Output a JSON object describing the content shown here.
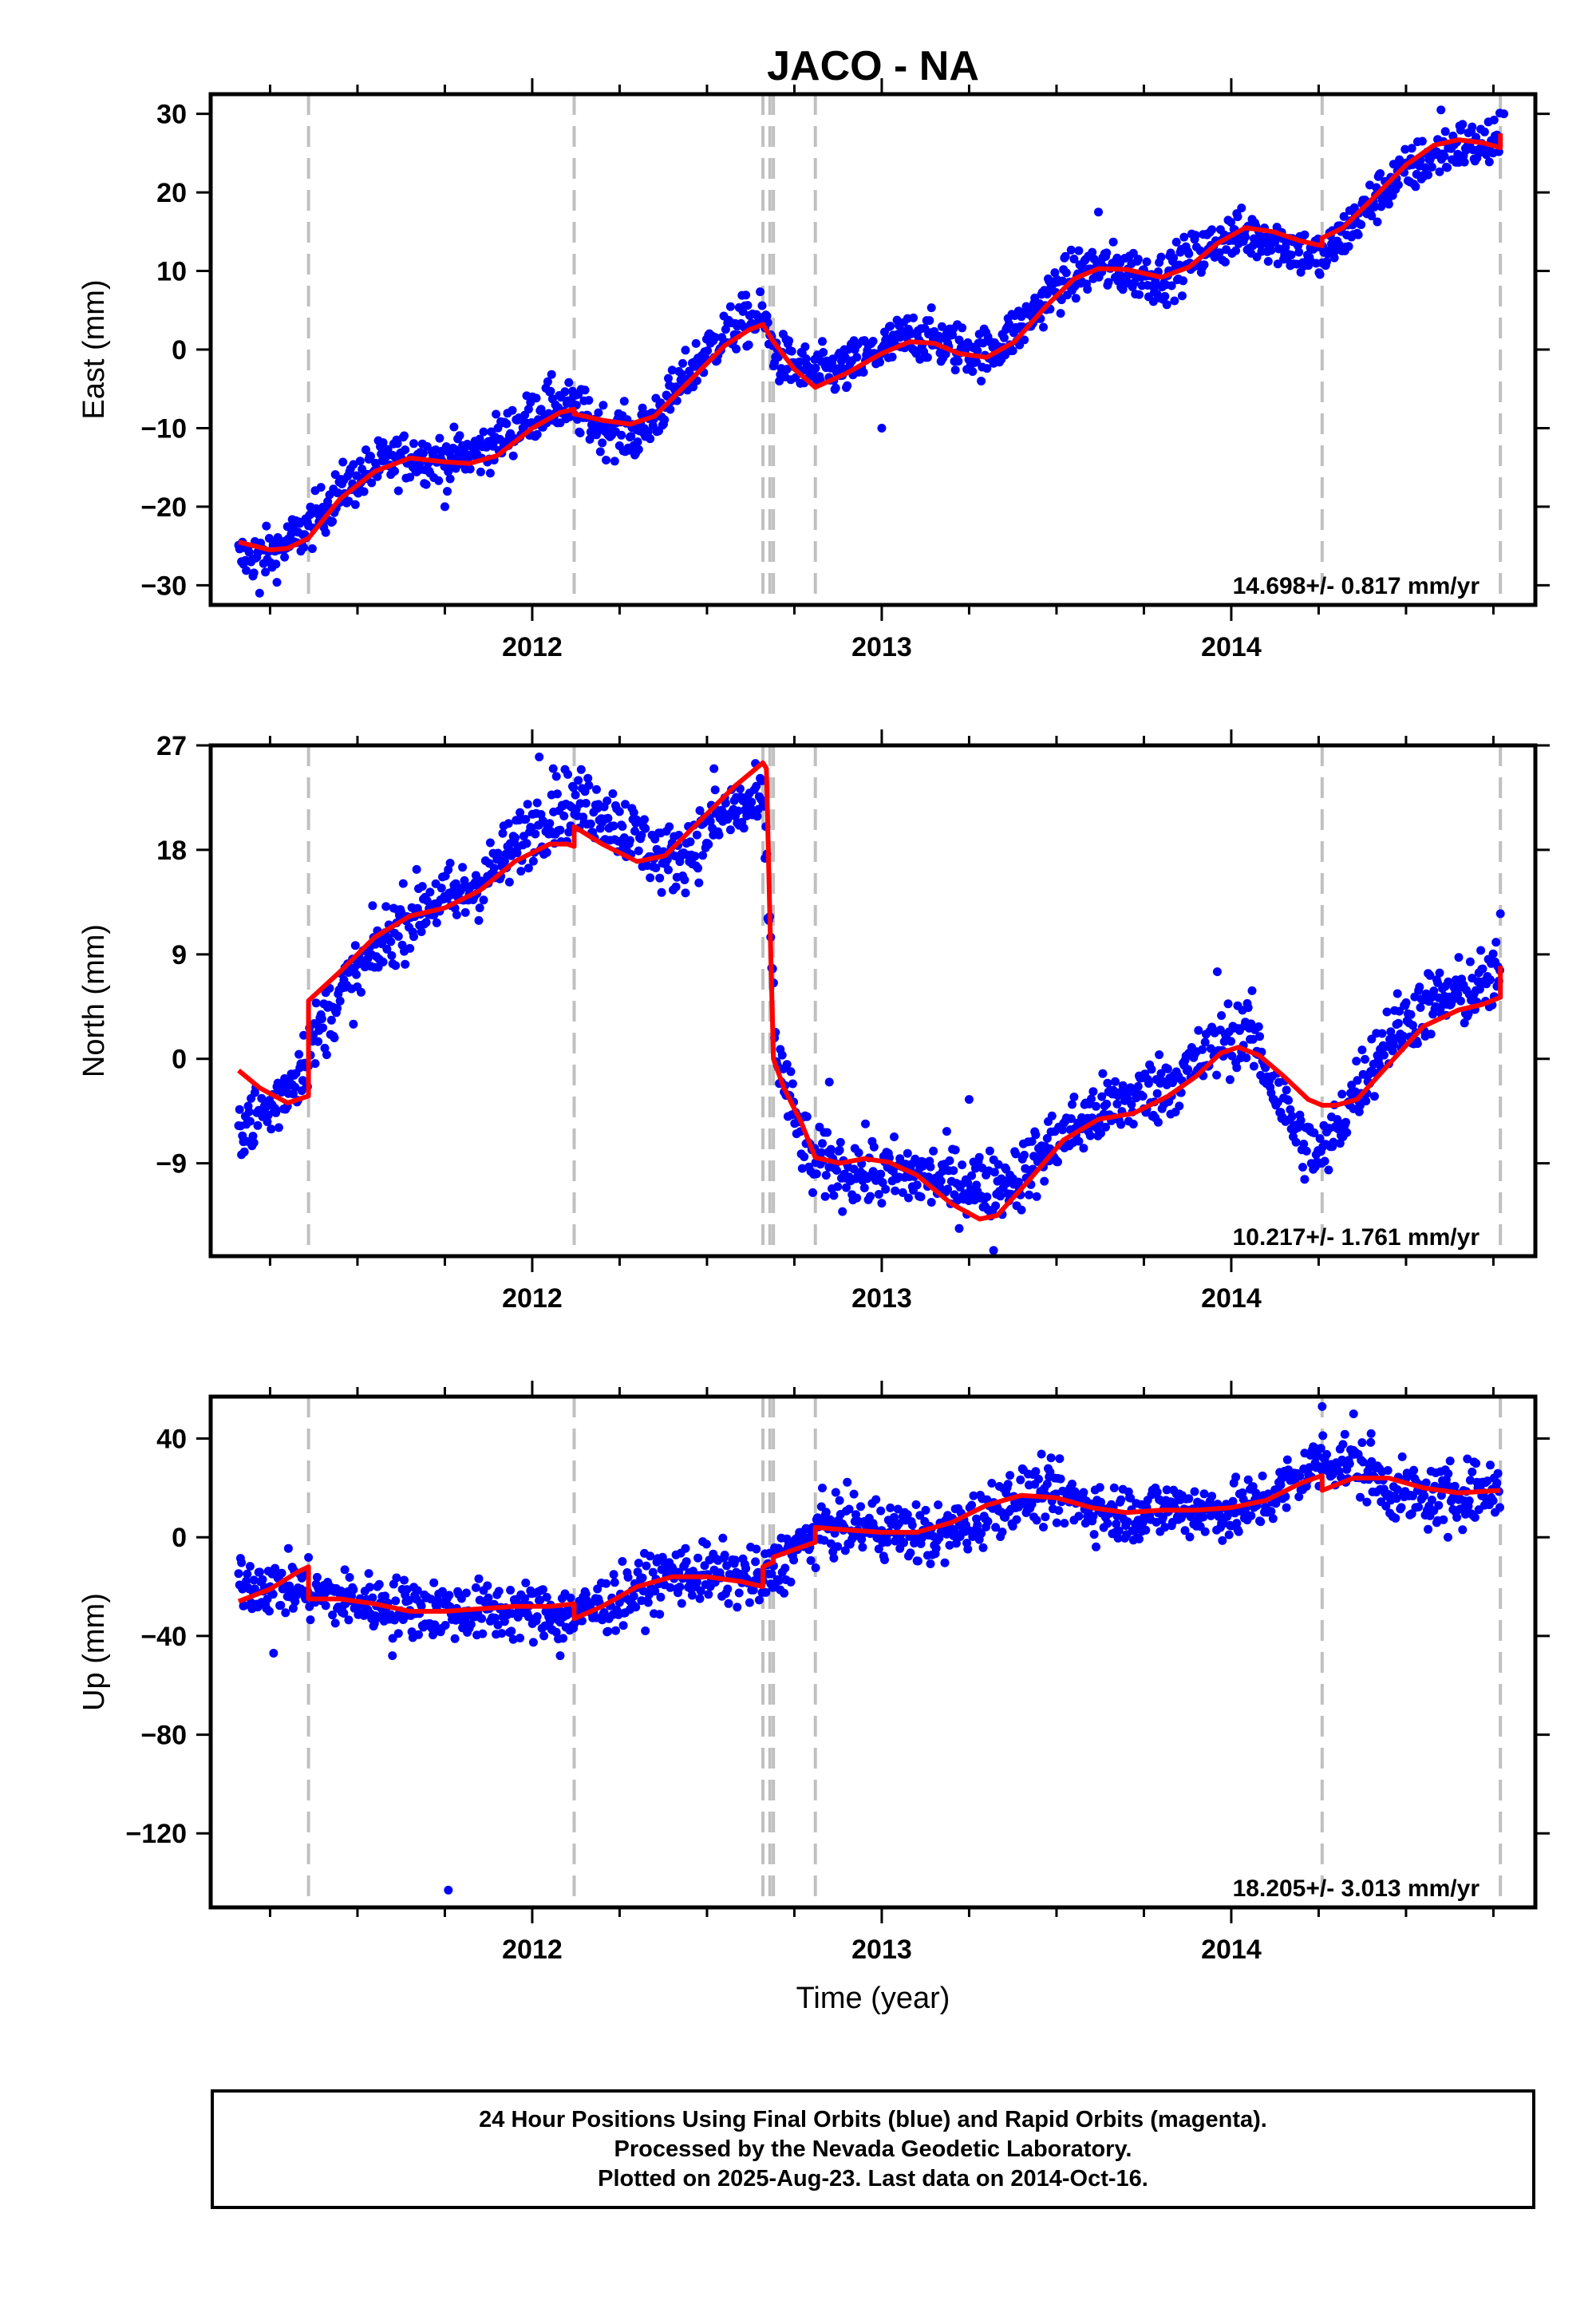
{
  "title": "JACO - NA",
  "xlabel": "Time (year)",
  "caption": [
    "24 Hour Positions Using Final Orbits (blue) and Rapid Orbits (magenta).",
    "Processed by the Nevada Geodetic Laboratory.",
    "Plotted on 2025-Aug-23. Last data on 2014-Oct-16."
  ],
  "colors": {
    "data": "#0000ff",
    "model": "#ff0000",
    "steps": "#c0c0c0",
    "frame": "#000000"
  },
  "chart_data": [
    {
      "type": "scatter",
      "panel": "East",
      "ylabel": "East (mm)",
      "xlim": [
        2011.08,
        2014.87
      ],
      "ylim": [
        -32.5,
        32.5
      ],
      "yticks": [
        -30,
        -20,
        -10,
        0,
        10,
        20,
        30
      ],
      "ytick_labels": [
        "−30",
        "−20",
        "−10",
        "0",
        "10",
        "20",
        "30"
      ],
      "xticks": [
        2012,
        2013,
        2014
      ],
      "xtick_labels": [
        "2012",
        "2013",
        "2014"
      ],
      "rate_text": "14.698+/- 0.817 mm/yr",
      "step_epochs": [
        2011.36,
        2012.12,
        2012.66,
        2012.68,
        2012.69,
        2012.81,
        2014.26,
        2014.77
      ],
      "data_trend": [
        [
          2011.16,
          -26.5
        ],
        [
          2011.25,
          -26
        ],
        [
          2011.34,
          -23.5
        ],
        [
          2011.45,
          -18
        ],
        [
          2011.55,
          -15
        ],
        [
          2011.65,
          -13.5
        ],
        [
          2011.75,
          -14
        ],
        [
          2011.85,
          -13
        ],
        [
          2011.95,
          -10
        ],
        [
          2012.05,
          -7
        ],
        [
          2012.12,
          -7.5
        ],
        [
          2012.2,
          -10
        ],
        [
          2012.3,
          -11
        ],
        [
          2012.4,
          -6
        ],
        [
          2012.5,
          0
        ],
        [
          2012.6,
          3.5
        ],
        [
          2012.66,
          4
        ],
        [
          2012.7,
          -1
        ],
        [
          2012.8,
          -3
        ],
        [
          2012.9,
          -2.5
        ],
        [
          2013.0,
          0
        ],
        [
          2013.1,
          2
        ],
        [
          2013.2,
          0.5
        ],
        [
          2013.3,
          -0.5
        ],
        [
          2013.4,
          3
        ],
        [
          2013.5,
          8
        ],
        [
          2013.6,
          10.5
        ],
        [
          2013.7,
          10
        ],
        [
          2013.8,
          9
        ],
        [
          2013.9,
          12
        ],
        [
          2014.0,
          14.5
        ],
        [
          2014.1,
          14.5
        ],
        [
          2014.2,
          12.5
        ],
        [
          2014.26,
          11.5
        ],
        [
          2014.35,
          16
        ],
        [
          2014.45,
          21
        ],
        [
          2014.55,
          24
        ],
        [
          2014.65,
          26
        ],
        [
          2014.77,
          26
        ]
      ],
      "data_spread": 1.6,
      "outliers": [
        [
          2011.22,
          -31
        ],
        [
          2011.75,
          -20
        ],
        [
          2013.0,
          -10
        ],
        [
          2013.62,
          17.5
        ],
        [
          2014.6,
          30.5
        ],
        [
          2014.78,
          30
        ]
      ],
      "model": [
        [
          2011.16,
          -24.5
        ],
        [
          2011.25,
          -25.5
        ],
        [
          2011.3,
          -25.3
        ],
        [
          2011.36,
          -24
        ],
        [
          2011.45,
          -19
        ],
        [
          2011.55,
          -15.5
        ],
        [
          2011.65,
          -13.8
        ],
        [
          2011.75,
          -14.3
        ],
        [
          2011.82,
          -14.5
        ],
        [
          2011.9,
          -13.5
        ],
        [
          2012.0,
          -10
        ],
        [
          2012.08,
          -8
        ],
        [
          2012.12,
          -7.6
        ],
        [
          2012.12,
          -8.2
        ],
        [
          2012.2,
          -9
        ],
        [
          2012.28,
          -9.5
        ],
        [
          2012.35,
          -8.5
        ],
        [
          2012.45,
          -4
        ],
        [
          2012.55,
          0.5
        ],
        [
          2012.62,
          2.5
        ],
        [
          2012.66,
          3.2
        ],
        [
          2012.69,
          1
        ],
        [
          2012.75,
          -2.5
        ],
        [
          2012.81,
          -4.8
        ],
        [
          2012.9,
          -3
        ],
        [
          2013.0,
          -0.5
        ],
        [
          2013.08,
          1
        ],
        [
          2013.15,
          0.8
        ],
        [
          2013.22,
          -0.5
        ],
        [
          2013.3,
          -1
        ],
        [
          2013.38,
          1
        ],
        [
          2013.47,
          5.5
        ],
        [
          2013.55,
          9
        ],
        [
          2013.62,
          10.3
        ],
        [
          2013.7,
          10.2
        ],
        [
          2013.8,
          9.2
        ],
        [
          2013.88,
          10.5
        ],
        [
          2013.96,
          13.5
        ],
        [
          2014.04,
          15.5
        ],
        [
          2014.12,
          15
        ],
        [
          2014.2,
          13.8
        ],
        [
          2014.26,
          13.2
        ],
        [
          2014.26,
          14.2
        ],
        [
          2014.32,
          15.5
        ],
        [
          2014.4,
          19
        ],
        [
          2014.5,
          23.5
        ],
        [
          2014.58,
          26
        ],
        [
          2014.65,
          26.7
        ],
        [
          2014.72,
          26.3
        ],
        [
          2014.77,
          25.7
        ],
        [
          2014.77,
          27.5
        ]
      ]
    },
    {
      "type": "scatter",
      "panel": "North",
      "ylabel": "North (mm)",
      "xlim": [
        2011.08,
        2014.87
      ],
      "ylim": [
        -17,
        27
      ],
      "yticks": [
        -9,
        0,
        9,
        18,
        27
      ],
      "ytick_labels": [
        "−9",
        "0",
        "9",
        "18",
        "27"
      ],
      "xticks": [
        2012,
        2013,
        2014
      ],
      "xtick_labels": [
        "2012",
        "2013",
        "2014"
      ],
      "rate_text": "10.217+/- 1.761 mm/yr",
      "step_epochs": [
        2011.36,
        2012.12,
        2012.66,
        2012.68,
        2012.69,
        2012.81,
        2014.26,
        2014.77
      ],
      "data_trend": [
        [
          2011.16,
          -5.5
        ],
        [
          2011.25,
          -4.5
        ],
        [
          2011.33,
          -1
        ],
        [
          2011.4,
          3
        ],
        [
          2011.45,
          5.5
        ],
        [
          2011.52,
          8
        ],
        [
          2011.6,
          11
        ],
        [
          2011.7,
          13.5
        ],
        [
          2011.8,
          14
        ],
        [
          2011.9,
          16.5
        ],
        [
          2012.0,
          20
        ],
        [
          2012.1,
          22
        ],
        [
          2012.2,
          21.5
        ],
        [
          2012.3,
          19
        ],
        [
          2012.38,
          17
        ],
        [
          2012.45,
          18
        ],
        [
          2012.55,
          21
        ],
        [
          2012.66,
          22
        ],
        [
          2012.7,
          0
        ],
        [
          2012.75,
          -5
        ],
        [
          2012.8,
          -9
        ],
        [
          2012.9,
          -9.5
        ],
        [
          2013.0,
          -10
        ],
        [
          2013.1,
          -10
        ],
        [
          2013.2,
          -10.5
        ],
        [
          2013.3,
          -11
        ],
        [
          2013.4,
          -10
        ],
        [
          2013.5,
          -7
        ],
        [
          2013.6,
          -5
        ],
        [
          2013.7,
          -3.5
        ],
        [
          2013.8,
          -2.5
        ],
        [
          2013.9,
          -0.5
        ],
        [
          2014.0,
          2
        ],
        [
          2014.05,
          2.5
        ],
        [
          2014.1,
          -1
        ],
        [
          2014.2,
          -7
        ],
        [
          2014.26,
          -8.5
        ],
        [
          2014.35,
          -3
        ],
        [
          2014.45,
          2
        ],
        [
          2014.55,
          4.5
        ],
        [
          2014.65,
          5.5
        ],
        [
          2014.77,
          7
        ]
      ],
      "data_spread": 1.5,
      "outliers": [
        [
          2012.02,
          26
        ],
        [
          2012.06,
          25
        ],
        [
          2012.52,
          25
        ],
        [
          2012.85,
          -2
        ],
        [
          2013.25,
          -3.5
        ],
        [
          2013.32,
          -16.5
        ],
        [
          2013.96,
          7.5
        ],
        [
          2014.77,
          12.5
        ]
      ],
      "model": [
        [
          2011.16,
          -1
        ],
        [
          2011.22,
          -2.5
        ],
        [
          2011.3,
          -3.8
        ],
        [
          2011.36,
          -3.2
        ],
        [
          2011.36,
          5
        ],
        [
          2011.45,
          7.5
        ],
        [
          2011.55,
          10.5
        ],
        [
          2011.65,
          12.3
        ],
        [
          2011.75,
          13
        ],
        [
          2011.85,
          14.5
        ],
        [
          2011.95,
          17
        ],
        [
          2012.05,
          18.5
        ],
        [
          2012.1,
          18.5
        ],
        [
          2012.12,
          18.3
        ],
        [
          2012.12,
          20
        ],
        [
          2012.2,
          18.5
        ],
        [
          2012.3,
          17
        ],
        [
          2012.38,
          17.5
        ],
        [
          2012.48,
          20.5
        ],
        [
          2012.58,
          23.5
        ],
        [
          2012.66,
          25.5
        ],
        [
          2012.67,
          25
        ],
        [
          2012.68,
          12
        ],
        [
          2012.69,
          0
        ],
        [
          2012.72,
          -2.5
        ],
        [
          2012.77,
          -5.5
        ],
        [
          2012.81,
          -8.5
        ],
        [
          2012.88,
          -9
        ],
        [
          2012.95,
          -8.6
        ],
        [
          2013.02,
          -8.9
        ],
        [
          2013.1,
          -10
        ],
        [
          2013.2,
          -12.5
        ],
        [
          2013.28,
          -13.8
        ],
        [
          2013.33,
          -13.5
        ],
        [
          2013.42,
          -10.5
        ],
        [
          2013.52,
          -7
        ],
        [
          2013.62,
          -5.2
        ],
        [
          2013.72,
          -4.7
        ],
        [
          2013.82,
          -3.2
        ],
        [
          2013.9,
          -1.5
        ],
        [
          2013.97,
          0.5
        ],
        [
          2014.02,
          1
        ],
        [
          2014.08,
          0.3
        ],
        [
          2014.15,
          -1.5
        ],
        [
          2014.22,
          -3.5
        ],
        [
          2014.26,
          -4
        ],
        [
          2014.3,
          -4
        ],
        [
          2014.36,
          -3.5
        ],
        [
          2014.45,
          -0.5
        ],
        [
          2014.55,
          2.8
        ],
        [
          2014.65,
          4.2
        ],
        [
          2014.72,
          4.7
        ],
        [
          2014.77,
          5.3
        ],
        [
          2014.77,
          8
        ]
      ]
    },
    {
      "type": "scatter",
      "panel": "Up",
      "ylabel": "Up (mm)",
      "xlim": [
        2011.08,
        2014.87
      ],
      "ylim": [
        -150,
        57
      ],
      "yticks": [
        -120,
        -80,
        -40,
        0,
        40
      ],
      "ytick_labels": [
        "−120",
        "−80",
        "−40",
        "0",
        "40"
      ],
      "xticks": [
        2012,
        2013,
        2014
      ],
      "xtick_labels": [
        "2012",
        "2013",
        "2014"
      ],
      "rate_text": "18.205+/- 3.013 mm/yr",
      "step_epochs": [
        2011.36,
        2012.12,
        2012.66,
        2012.68,
        2012.69,
        2012.81,
        2014.26,
        2014.77
      ],
      "data_trend": [
        [
          2011.16,
          -18
        ],
        [
          2011.3,
          -20
        ],
        [
          2011.45,
          -25
        ],
        [
          2011.6,
          -28
        ],
        [
          2011.8,
          -30
        ],
        [
          2012.0,
          -30
        ],
        [
          2012.12,
          -32
        ],
        [
          2012.25,
          -25
        ],
        [
          2012.4,
          -15
        ],
        [
          2012.55,
          -15
        ],
        [
          2012.66,
          -18
        ],
        [
          2012.75,
          -5
        ],
        [
          2012.85,
          5
        ],
        [
          2013.0,
          4
        ],
        [
          2013.15,
          0
        ],
        [
          2013.25,
          5
        ],
        [
          2013.35,
          15
        ],
        [
          2013.45,
          18
        ],
        [
          2013.55,
          15
        ],
        [
          2013.65,
          10
        ],
        [
          2013.75,
          10
        ],
        [
          2013.85,
          12
        ],
        [
          2014.0,
          10
        ],
        [
          2014.1,
          15
        ],
        [
          2014.2,
          25
        ],
        [
          2014.26,
          32
        ],
        [
          2014.35,
          30
        ],
        [
          2014.45,
          20
        ],
        [
          2014.55,
          15
        ],
        [
          2014.65,
          18
        ],
        [
          2014.77,
          20
        ]
      ],
      "data_spread": 6,
      "outliers": [
        [
          2011.26,
          -47
        ],
        [
          2011.6,
          -48
        ],
        [
          2011.76,
          -143
        ],
        [
          2012.08,
          -48
        ],
        [
          2014.26,
          53
        ],
        [
          2014.35,
          50
        ],
        [
          2014.4,
          42
        ],
        [
          2014.62,
          0
        ]
      ],
      "model": [
        [
          2011.16,
          -26
        ],
        [
          2011.25,
          -21
        ],
        [
          2011.33,
          -14
        ],
        [
          2011.36,
          -12
        ],
        [
          2011.36,
          -25
        ],
        [
          2011.45,
          -25
        ],
        [
          2011.55,
          -27
        ],
        [
          2011.65,
          -30
        ],
        [
          2011.75,
          -30
        ],
        [
          2011.85,
          -29
        ],
        [
          2011.95,
          -28
        ],
        [
          2012.05,
          -28
        ],
        [
          2012.12,
          -27
        ],
        [
          2012.12,
          -33
        ],
        [
          2012.2,
          -28
        ],
        [
          2012.3,
          -20
        ],
        [
          2012.4,
          -16
        ],
        [
          2012.5,
          -16
        ],
        [
          2012.6,
          -18
        ],
        [
          2012.66,
          -20
        ],
        [
          2012.66,
          -12
        ],
        [
          2012.69,
          -10
        ],
        [
          2012.69,
          -8
        ],
        [
          2012.81,
          -2
        ],
        [
          2012.81,
          4
        ],
        [
          2012.9,
          3
        ],
        [
          2013.0,
          2
        ],
        [
          2013.1,
          2
        ],
        [
          2013.2,
          6
        ],
        [
          2013.3,
          13
        ],
        [
          2013.4,
          17
        ],
        [
          2013.5,
          16
        ],
        [
          2013.6,
          12
        ],
        [
          2013.7,
          10
        ],
        [
          2013.8,
          11
        ],
        [
          2013.9,
          11
        ],
        [
          2014.0,
          12
        ],
        [
          2014.1,
          15
        ],
        [
          2014.2,
          22
        ],
        [
          2014.26,
          25
        ],
        [
          2014.26,
          19
        ],
        [
          2014.35,
          24
        ],
        [
          2014.45,
          24
        ],
        [
          2014.55,
          20
        ],
        [
          2014.65,
          18
        ],
        [
          2014.77,
          19
        ]
      ]
    }
  ]
}
